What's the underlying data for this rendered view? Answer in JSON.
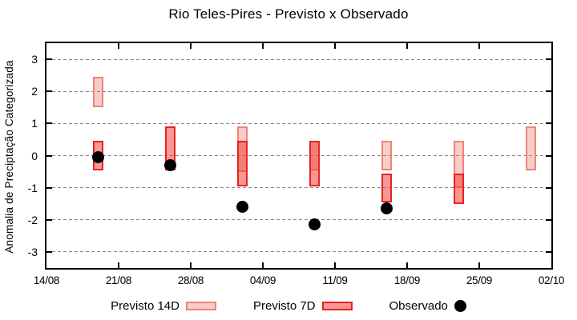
{
  "title": "Rio Teles-Pires - Previsto x Observado",
  "ylabel": "Anomalia de Preciptação Categorizada",
  "legend": {
    "previsto14": "Previsto 14D",
    "previsto7": "Previsto 7D",
    "observado": "Observado"
  },
  "colors": {
    "p14_fill": "rgba(237,100,88,0.33)",
    "p14_border": "#ee8378",
    "p7_fill": "rgba(244,48,40,0.5)",
    "p7_border": "#e62320",
    "observed": "#000000",
    "grid": "#8a8a8a",
    "axis": "#000000"
  },
  "chart_data": {
    "type": "bar",
    "subtype": "range-candlestick-with-points",
    "title": "Rio Teles-Pires - Previsto x Observado",
    "xlabel": "",
    "ylabel": "Anomalia de Preciptação Categorizada",
    "ylim": [
      -3.5,
      3.5
    ],
    "yticks": [
      3,
      2,
      1,
      0,
      -1,
      -2,
      -3
    ],
    "yticklabels": [
      "3",
      "2",
      "1",
      "0",
      "-1",
      "-2",
      "-3"
    ],
    "grid": "horizontal-dashed",
    "legend_position": "bottom-center",
    "x_day_span": 49,
    "xtick_days": [
      0,
      7,
      14,
      21,
      28,
      35,
      42,
      49
    ],
    "xticklabels": [
      "14/08",
      "21/08",
      "28/08",
      "04/09",
      "11/09",
      "18/09",
      "25/09",
      "02/10"
    ],
    "x_dates": [
      "19/08",
      "26/08",
      "02/09",
      "09/09",
      "16/09",
      "23/09",
      "30/09"
    ],
    "x_day_offsets": [
      5,
      12,
      19,
      26,
      33,
      40,
      47
    ],
    "series": [
      {
        "name": "Previsto 14D",
        "type": "range",
        "ranges": [
          [
            1.5,
            2.45
          ],
          null,
          [
            -0.5,
            0.9
          ],
          [
            -0.45,
            0.45
          ],
          [
            -0.45,
            0.45
          ],
          [
            -1.0,
            0.45
          ],
          [
            -0.45,
            0.9
          ]
        ]
      },
      {
        "name": "Previsto 7D",
        "type": "range",
        "ranges": [
          [
            -0.45,
            0.45
          ],
          [
            -0.45,
            0.9
          ],
          [
            -0.95,
            0.45
          ],
          [
            -0.95,
            0.45
          ],
          [
            -1.45,
            -0.55
          ],
          [
            -1.5,
            -0.55
          ],
          null
        ]
      },
      {
        "name": "Observado",
        "type": "scatter",
        "values": [
          -0.05,
          -0.3,
          -1.6,
          -2.15,
          -1.65,
          null,
          null
        ]
      }
    ]
  }
}
